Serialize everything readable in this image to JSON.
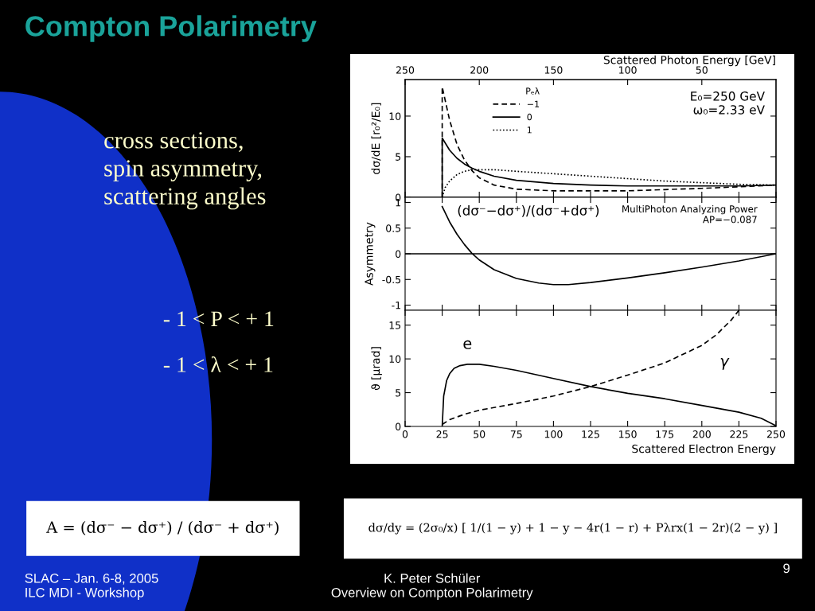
{
  "chart_data": [
    {
      "type": "other",
      "title": "Compton Polarimetry",
      "annotations": [
        "cross sections,\nspin asymmetry,\nscattering angles",
        "- 1 < P < + 1",
        "- 1 < λ < + 1",
        "A = (dσ⁻ − dσ⁺) / (dσ⁻ + dσ⁺)",
        "dσ/dy = (2σ₀/x) [ 1/(1 − y) + 1 − y − 4r(1 − r) + Pλrx(1 − 2r)(2 − y) ]",
        "SLAC – Jan. 6-8, 2005\nILC MDI - Workshop",
        "K. Peter Schüler\nOverview on Compton Polarimetry",
        "9"
      ]
    },
    {
      "type": "line",
      "ylabel": "dσ/dE [r₀²/E₀]",
      "x2label": "Scattered Photon Energy [GeV]",
      "xlim": [
        0,
        250
      ],
      "x2lim": [
        250,
        0
      ],
      "x2ticks": [
        250,
        200,
        150,
        100,
        50
      ],
      "ylim": [
        0,
        14.5
      ],
      "yticks": [
        0,
        5,
        10
      ],
      "tick_labels": "y",
      "legend": "top",
      "legend_title": "Pₑλ",
      "annotations": [
        "E₀=250 GeV\nω₀=2.33 eV"
      ],
      "series": [
        {
          "name": "−1",
          "color": "#000000",
          "line_style": "dashed",
          "x": [
            25,
            25,
            30,
            35,
            40,
            45,
            50,
            60,
            75,
            100,
            125,
            150,
            175,
            200,
            225,
            250
          ],
          "values": [
            0,
            13.6,
            9.5,
            6.5,
            4.6,
            3.3,
            2.4,
            1.5,
            1.0,
            0.8,
            0.8,
            0.8,
            0.95,
            1.1,
            1.3,
            1.5
          ]
        },
        {
          "name": "0",
          "color": "#000000",
          "line_style": "solid",
          "x": [
            25,
            25,
            30,
            35,
            40,
            45,
            50,
            60,
            75,
            100,
            125,
            150,
            175,
            200,
            225,
            250
          ],
          "values": [
            0,
            7.3,
            5.8,
            4.8,
            4.1,
            3.6,
            3.2,
            2.6,
            2.1,
            1.7,
            1.5,
            1.4,
            1.4,
            1.4,
            1.4,
            1.5
          ]
        },
        {
          "name": "1",
          "color": "#000000",
          "line_style": "dotted",
          "x": [
            25,
            27,
            30,
            35,
            40,
            45,
            50,
            60,
            75,
            100,
            125,
            150,
            175,
            200,
            225,
            250
          ],
          "values": [
            0,
            1.2,
            2.0,
            2.8,
            3.2,
            3.4,
            3.4,
            3.4,
            3.2,
            2.9,
            2.6,
            2.3,
            2.0,
            1.8,
            1.6,
            1.5
          ]
        }
      ]
    },
    {
      "type": "line",
      "ylabel": "Asymmetry",
      "xlim": [
        0,
        250
      ],
      "ylim": [
        -1.1,
        1.1
      ],
      "yticks": [
        -1,
        -0.5,
        0,
        0.5,
        1
      ],
      "tick_labels": "y",
      "annotations": [
        "(dσ⁻−dσ⁺)/(dσ⁻+dσ⁺)",
        "MultiPhoton Analyzing Power\nAP=−0.087"
      ],
      "ref_lines": [
        {
          "axis": "y",
          "value": 0,
          "color": "#000000"
        }
      ],
      "series": [
        {
          "color": "#000000",
          "line_style": "solid",
          "x": [
            25,
            30,
            35,
            40,
            45,
            50,
            60,
            75,
            90,
            100,
            110,
            125,
            150,
            175,
            200,
            225,
            250
          ],
          "values": [
            0.92,
            0.62,
            0.38,
            0.18,
            0.01,
            -0.12,
            -0.31,
            -0.48,
            -0.57,
            -0.6,
            -0.6,
            -0.56,
            -0.47,
            -0.37,
            -0.26,
            -0.14,
            0.0
          ]
        }
      ]
    },
    {
      "type": "line",
      "ylabel": "ϑ [μrad]",
      "xlabel": "Scattered Electron Energy",
      "xlim": [
        0,
        250
      ],
      "xticks": [
        0,
        25,
        50,
        75,
        100,
        125,
        150,
        175,
        200,
        225,
        250
      ],
      "ylim": [
        0,
        17.2
      ],
      "yticks": [
        0,
        5,
        10,
        15
      ],
      "series": [
        {
          "name": "e",
          "color": "#000000",
          "line_style": "solid",
          "x": [
            25,
            26,
            28,
            30,
            33,
            37,
            42,
            50,
            60,
            75,
            100,
            125,
            150,
            175,
            200,
            225,
            240,
            250
          ],
          "values": [
            0,
            4.5,
            6.8,
            7.8,
            8.6,
            9.0,
            9.2,
            9.2,
            8.9,
            8.3,
            7.1,
            5.9,
            4.9,
            4.1,
            3.1,
            2.1,
            1.2,
            0.1
          ]
        },
        {
          "name": "γ",
          "color": "#000000",
          "line_style": "dashed",
          "x": [
            25,
            30,
            40,
            50,
            75,
            100,
            125,
            150,
            175,
            200,
            210,
            220,
            225
          ],
          "values": [
            0.3,
            1.0,
            1.8,
            2.4,
            3.4,
            4.5,
            5.9,
            7.6,
            9.4,
            12.0,
            13.6,
            15.8,
            17.2
          ]
        }
      ]
    }
  ]
}
